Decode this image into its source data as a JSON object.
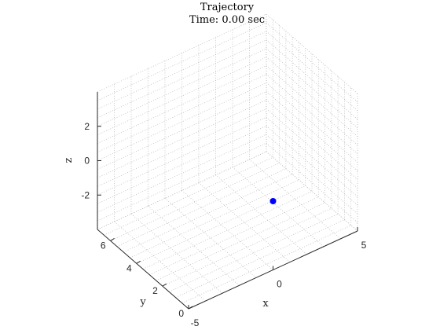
{
  "chart_data": {
    "type": "scatter3d",
    "title": "Trajectory",
    "subtitle": "Time: 0.00 sec",
    "xlabel": "x",
    "ylabel": "y",
    "zlabel": "z",
    "xlim": [
      -5,
      5
    ],
    "ylim": [
      0,
      7
    ],
    "zlim": [
      -4,
      4
    ],
    "xticks": [
      -5,
      0,
      5
    ],
    "yticks": [
      0,
      2,
      4,
      6
    ],
    "zticks": [
      -2,
      0,
      2
    ],
    "grid": true,
    "points": [
      {
        "x": 0,
        "y": 0,
        "z": 0,
        "color": "#0000ff"
      }
    ]
  }
}
